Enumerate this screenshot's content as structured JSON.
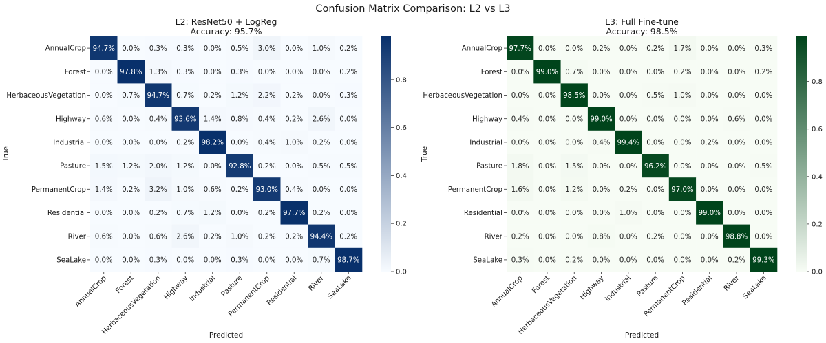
{
  "figure": {
    "title": "Confusion Matrix Comparison: L2 vs L3"
  },
  "chart_data": [
    {
      "type": "heatmap",
      "title": "L2: ResNet50 + LogReg",
      "subtitle": "Accuracy: 95.7%",
      "xlabel": "Predicted",
      "ylabel": "True",
      "colormap": "Blues",
      "color_low": "#f7fbff",
      "color_high": "#08306b",
      "vmin": 0,
      "vmax": 0.98,
      "colorbar_ticks": [
        "0.0",
        "0.2",
        "0.4",
        "0.6",
        "0.8"
      ],
      "categories": [
        "AnnualCrop",
        "Forest",
        "HerbaceousVegetation",
        "Highway",
        "Industrial",
        "Pasture",
        "PermanentCrop",
        "Residential",
        "River",
        "SeaLake"
      ],
      "values": [
        [
          94.7,
          0.0,
          0.3,
          0.3,
          0.0,
          0.5,
          3.0,
          0.0,
          1.0,
          0.2
        ],
        [
          0.0,
          97.8,
          1.3,
          0.3,
          0.0,
          0.3,
          0.0,
          0.0,
          0.0,
          0.2
        ],
        [
          0.0,
          0.7,
          94.7,
          0.7,
          0.2,
          1.2,
          2.2,
          0.2,
          0.0,
          0.3
        ],
        [
          0.6,
          0.0,
          0.4,
          93.6,
          1.4,
          0.8,
          0.4,
          0.2,
          2.6,
          0.0
        ],
        [
          0.0,
          0.0,
          0.0,
          0.2,
          98.2,
          0.0,
          0.4,
          1.0,
          0.2,
          0.0
        ],
        [
          1.5,
          1.2,
          2.0,
          1.2,
          0.0,
          92.8,
          0.2,
          0.0,
          0.5,
          0.5
        ],
        [
          1.4,
          0.2,
          3.2,
          1.0,
          0.6,
          0.2,
          93.0,
          0.4,
          0.0,
          0.0
        ],
        [
          0.0,
          0.0,
          0.2,
          0.7,
          1.2,
          0.0,
          0.2,
          97.7,
          0.2,
          0.0
        ],
        [
          0.6,
          0.0,
          0.6,
          2.6,
          0.2,
          1.0,
          0.2,
          0.2,
          94.4,
          0.2
        ],
        [
          0.0,
          0.0,
          0.3,
          0.0,
          0.0,
          0.3,
          0.0,
          0.0,
          0.7,
          98.7
        ]
      ]
    },
    {
      "type": "heatmap",
      "title": "L3: Full Fine-tune",
      "subtitle": "Accuracy: 98.5%",
      "xlabel": "Predicted",
      "ylabel": "True",
      "colormap": "Greens",
      "color_low": "#f7fcf5",
      "color_high": "#00441b",
      "vmin": 0,
      "vmax": 0.99,
      "colorbar_ticks": [
        "0.0",
        "0.2",
        "0.4",
        "0.6",
        "0.8"
      ],
      "categories": [
        "AnnualCrop",
        "Forest",
        "HerbaceousVegetation",
        "Highway",
        "Industrial",
        "Pasture",
        "PermanentCrop",
        "Residential",
        "River",
        "SeaLake"
      ],
      "values": [
        [
          97.7,
          0.0,
          0.0,
          0.2,
          0.0,
          0.2,
          1.7,
          0.0,
          0.0,
          0.3
        ],
        [
          0.0,
          99.0,
          0.7,
          0.0,
          0.0,
          0.0,
          0.2,
          0.0,
          0.0,
          0.2
        ],
        [
          0.0,
          0.0,
          98.5,
          0.0,
          0.0,
          0.5,
          1.0,
          0.0,
          0.0,
          0.0
        ],
        [
          0.4,
          0.0,
          0.0,
          99.0,
          0.0,
          0.0,
          0.0,
          0.0,
          0.6,
          0.0
        ],
        [
          0.0,
          0.0,
          0.0,
          0.4,
          99.4,
          0.0,
          0.0,
          0.2,
          0.0,
          0.0
        ],
        [
          1.8,
          0.0,
          1.5,
          0.0,
          0.0,
          96.2,
          0.0,
          0.0,
          0.0,
          0.5
        ],
        [
          1.6,
          0.0,
          1.2,
          0.0,
          0.2,
          0.0,
          97.0,
          0.0,
          0.0,
          0.0
        ],
        [
          0.0,
          0.0,
          0.0,
          0.0,
          1.0,
          0.0,
          0.0,
          99.0,
          0.0,
          0.0
        ],
        [
          0.2,
          0.0,
          0.0,
          0.8,
          0.0,
          0.2,
          0.0,
          0.0,
          98.8,
          0.0
        ],
        [
          0.3,
          0.0,
          0.2,
          0.0,
          0.0,
          0.0,
          0.0,
          0.0,
          0.2,
          99.3
        ]
      ]
    }
  ]
}
